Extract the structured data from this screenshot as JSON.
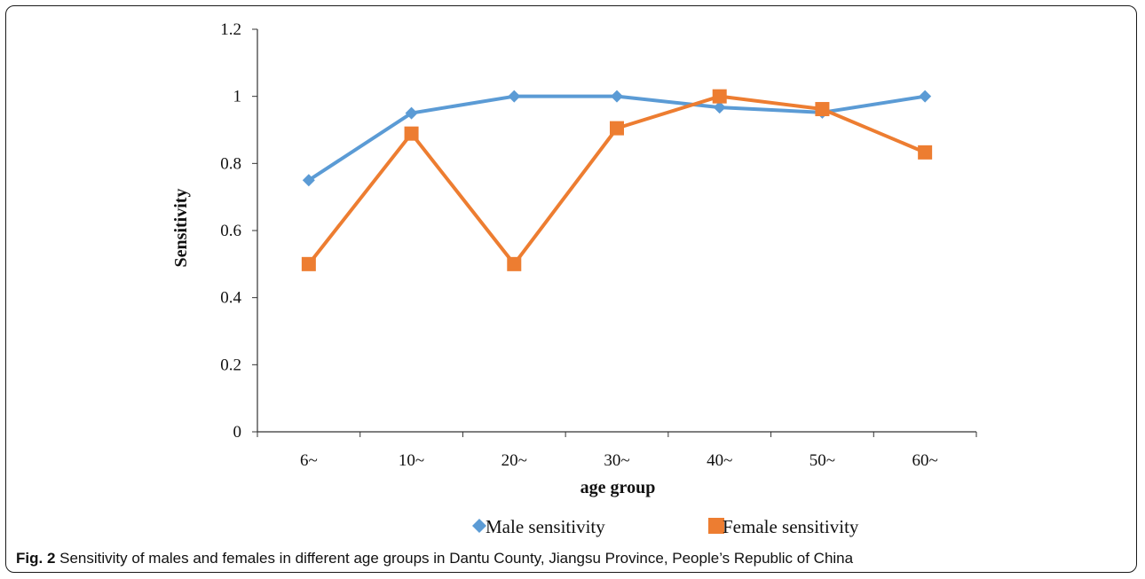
{
  "caption": {
    "label": "Fig. 2",
    "text": " Sensitivity of males and females in different age groups in Dantu County, Jiangsu Province, People’s Republic of China"
  },
  "chart_data": {
    "type": "line",
    "categories": [
      "6~",
      "10~",
      "20~",
      "30~",
      "40~",
      "50~",
      "60~"
    ],
    "series": [
      {
        "name": "Male sensitivity",
        "color": "#5b9bd5",
        "marker": "diamond",
        "values": [
          0.75,
          0.95,
          1.0,
          1.0,
          0.967,
          0.952,
          1.0
        ]
      },
      {
        "name": "Female sensitivity",
        "color": "#ed7d31",
        "marker": "square",
        "values": [
          0.5,
          0.889,
          0.5,
          0.905,
          1.0,
          0.962,
          0.833
        ]
      }
    ],
    "xlabel": "age group",
    "ylabel": "Sensitivity",
    "ylim": [
      0,
      1.2
    ],
    "yticks": [
      "0",
      "0.2",
      "0.4",
      "0.6",
      "0.8",
      "1",
      "1.2"
    ],
    "grid": false,
    "legend": "bottom"
  }
}
